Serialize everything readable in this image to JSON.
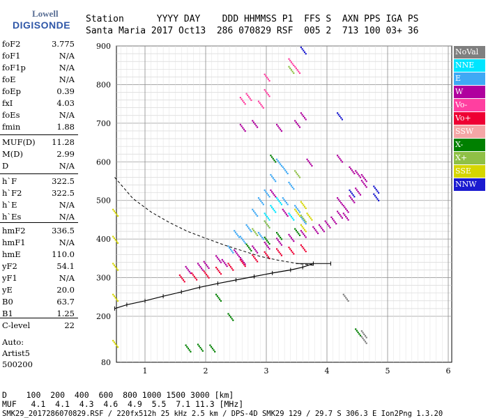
{
  "logo": {
    "line1": "Lowell",
    "line2": "DIGISONDE"
  },
  "header": {
    "row1": "Station      YYYY DAY    DDD HHMMSS P1  FFS S  AXN PPS IGA PS",
    "row2": "Santa Maria 2017 Oct13  286 070829 RSF  005 2  713 100 03+ 36"
  },
  "params": [
    {
      "label": "foF2",
      "value": "3.775"
    },
    {
      "label": "foF1",
      "value": "N/A"
    },
    {
      "label": "foF1p",
      "value": "N/A"
    },
    {
      "label": "foE",
      "value": "N/A"
    },
    {
      "label": "foEp",
      "value": "0.39"
    },
    {
      "label": "fxI",
      "value": "4.03"
    },
    {
      "label": "foEs",
      "value": "N/A"
    },
    {
      "label": "fmin",
      "value": "1.88"
    },
    {
      "label": "MUF(D)",
      "value": "11.28"
    },
    {
      "label": "M(D)",
      "value": "2.99"
    },
    {
      "label": "D",
      "value": "N/A"
    },
    {
      "label": "h`F",
      "value": "322.5"
    },
    {
      "label": "h`F2",
      "value": "322.5"
    },
    {
      "label": "h`E",
      "value": "N/A"
    },
    {
      "label": "h`Es",
      "value": "N/A"
    },
    {
      "label": "hmF2",
      "value": "336.5"
    },
    {
      "label": "hmF1",
      "value": "N/A"
    },
    {
      "label": "hmE",
      "value": "110.0"
    },
    {
      "label": "yF2",
      "value": "54.1"
    },
    {
      "label": "yF1",
      "value": "N/A"
    },
    {
      "label": "yE",
      "value": "20.0"
    },
    {
      "label": "B0",
      "value": "63.7"
    },
    {
      "label": "B1",
      "value": "1.25"
    },
    {
      "label": "C-level",
      "value": "22"
    }
  ],
  "auto": [
    "Auto:",
    "Artist5",
    "500200"
  ],
  "legend": [
    {
      "label": "NoVal",
      "color": "#7f7f7f"
    },
    {
      "label": "NNE",
      "color": "#00e5ff"
    },
    {
      "label": "E",
      "color": "#3fa9f5"
    },
    {
      "label": "W",
      "color": "#b0009e"
    },
    {
      "label": "Vo-",
      "color": "#ff3fa0"
    },
    {
      "label": "Vo+",
      "color": "#ee0033"
    },
    {
      "label": "SSW",
      "color": "#f4a6a6"
    },
    {
      "label": "X-",
      "color": "#008000"
    },
    {
      "label": "X+",
      "color": "#8fc046"
    },
    {
      "label": "SSE",
      "color": "#d6d600"
    },
    {
      "label": "NNW",
      "color": "#1a1ad0"
    }
  ],
  "footer": {
    "row1": "D    100  200  400  600  800 1000 1500 3000 [km]",
    "row2": "MUF   4.1  4.1  4.3  4.6  4.9  5.5  7.1 11.3 [MHz]",
    "row3": "SMK29_2017286070829.RSF / 220fx512h 25 kHz 2.5 km / DPS-4D SMK29 129 / 29.7 S 306.3 E Ion2Png 1.3.20"
  },
  "chart_data": {
    "type": "scatter",
    "xlabel": "",
    "ylabel": "",
    "xlim": [
      0.5,
      6.0
    ],
    "ylim": [
      80,
      900
    ],
    "x_ticks": [
      1,
      2,
      3,
      4,
      5,
      6
    ],
    "y_ticks": [
      80,
      200,
      300,
      400,
      500,
      600,
      700,
      800,
      900
    ],
    "grid": true,
    "legend_position": "right",
    "trace_profile": {
      "name": "",
      "x": [
        0.5,
        0.7,
        1.0,
        1.3,
        1.6,
        1.9,
        2.2,
        2.5,
        2.8,
        3.1,
        3.4,
        3.6,
        3.775
      ],
      "y": [
        220,
        230,
        240,
        252,
        263,
        275,
        285,
        294,
        303,
        312,
        320,
        327,
        336.5
      ]
    },
    "dashed_curve": {
      "x": [
        0.5,
        0.8,
        1.1,
        1.4,
        1.7,
        2.0,
        2.3,
        2.6,
        2.9,
        3.2,
        3.5,
        3.775
      ],
      "y": [
        560,
        505,
        470,
        443,
        420,
        402,
        385,
        370,
        355,
        345,
        337,
        332
      ]
    },
    "series": [
      {
        "name": "W",
        "points": [
          [
            2.2,
            350
          ],
          [
            2.5,
            365
          ],
          [
            2.8,
            375
          ],
          [
            3.0,
            385
          ],
          [
            3.2,
            395
          ],
          [
            3.4,
            405
          ],
          [
            3.6,
            415
          ],
          [
            3.8,
            425
          ],
          [
            4.0,
            440
          ],
          [
            4.1,
            450
          ],
          [
            4.2,
            465
          ],
          [
            4.3,
            480
          ],
          [
            4.4,
            505
          ],
          [
            4.5,
            525
          ],
          [
            4.6,
            545
          ],
          [
            4.3,
            460
          ],
          [
            3.9,
            430
          ],
          [
            4.6,
            560
          ],
          [
            3.1,
            520
          ],
          [
            3.3,
            470
          ],
          [
            4.2,
            500
          ],
          [
            2.6,
            690
          ],
          [
            2.8,
            700
          ],
          [
            3.5,
            700
          ],
          [
            3.6,
            720
          ],
          [
            3.2,
            690
          ],
          [
            1.7,
            322
          ],
          [
            1.9,
            330
          ],
          [
            2.0,
            335
          ],
          [
            2.3,
            340
          ],
          [
            2.6,
            345
          ],
          [
            3.7,
            600
          ],
          [
            4.2,
            610
          ],
          [
            4.4,
            580
          ],
          [
            4.5,
            570
          ]
        ]
      },
      {
        "name": "E",
        "points": [
          [
            2.4,
            375
          ],
          [
            2.6,
            400
          ],
          [
            2.7,
            430
          ],
          [
            2.8,
            470
          ],
          [
            2.9,
            500
          ],
          [
            3.0,
            520
          ],
          [
            3.1,
            560
          ],
          [
            3.2,
            600
          ],
          [
            3.3,
            500
          ],
          [
            3.3,
            580
          ],
          [
            3.4,
            540
          ],
          [
            3.5,
            480
          ],
          [
            3.6,
            450
          ],
          [
            3.0,
            440
          ],
          [
            2.5,
            415
          ],
          [
            2.9,
            410
          ]
        ]
      },
      {
        "name": "Vo+",
        "points": [
          [
            1.6,
            300
          ],
          [
            1.8,
            305
          ],
          [
            2.0,
            310
          ],
          [
            2.2,
            320
          ],
          [
            2.4,
            330
          ],
          [
            2.6,
            340
          ],
          [
            2.8,
            352
          ],
          [
            3.0,
            360
          ],
          [
            3.2,
            368
          ],
          [
            3.4,
            372
          ],
          [
            3.6,
            378
          ]
        ]
      },
      {
        "name": "Vo-",
        "points": [
          [
            2.6,
            760
          ],
          [
            2.7,
            770
          ],
          [
            2.9,
            750
          ],
          [
            3.0,
            820
          ],
          [
            3.4,
            860
          ],
          [
            3.5,
            840
          ],
          [
            3.0,
            780
          ]
        ]
      },
      {
        "name": "X-",
        "points": [
          [
            1.7,
            118
          ],
          [
            1.9,
            120
          ],
          [
            2.1,
            118
          ],
          [
            2.2,
            250
          ],
          [
            2.4,
            200
          ],
          [
            2.7,
            380
          ],
          [
            3.0,
            398
          ],
          [
            3.2,
            410
          ],
          [
            3.5,
            420
          ],
          [
            3.1,
            610
          ],
          [
            4.5,
            160
          ]
        ]
      },
      {
        "name": "X+",
        "points": [
          [
            2.8,
            420
          ],
          [
            3.0,
            440
          ],
          [
            3.5,
            570
          ],
          [
            3.6,
            455
          ],
          [
            3.4,
            840
          ]
        ]
      },
      {
        "name": "SSE",
        "points": [
          [
            3.5,
            470
          ],
          [
            3.6,
            490
          ],
          [
            3.7,
            460
          ],
          [
            3.6,
            430
          ],
          [
            0.5,
            130
          ],
          [
            0.5,
            250
          ],
          [
            0.5,
            400
          ],
          [
            0.5,
            470
          ],
          [
            0.5,
            330
          ]
        ]
      },
      {
        "name": "NNE",
        "points": [
          [
            3.1,
            480
          ],
          [
            3.2,
            500
          ],
          [
            3.4,
            460
          ],
          [
            3.0,
            460
          ]
        ]
      },
      {
        "name": "NNW",
        "points": [
          [
            3.6,
            890
          ],
          [
            4.8,
            530
          ],
          [
            4.8,
            510
          ],
          [
            4.2,
            720
          ],
          [
            4.4,
            520
          ]
        ]
      },
      {
        "name": "NoVal",
        "points": [
          [
            4.3,
            250
          ],
          [
            4.6,
            140
          ],
          [
            4.6,
            155
          ]
        ]
      }
    ]
  }
}
